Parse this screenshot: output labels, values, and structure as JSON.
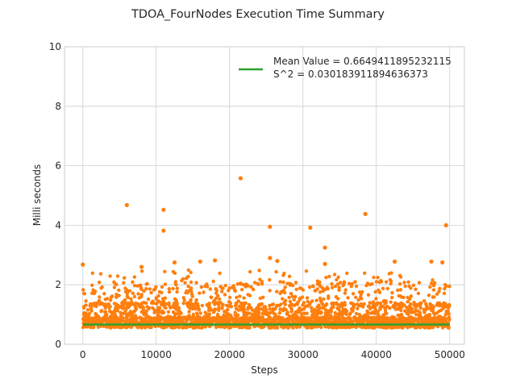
{
  "chart_data": {
    "type": "scatter",
    "title": "TDOA_FourNodes Execution Time Summary",
    "xlabel": "Steps",
    "ylabel": "Milli seconds",
    "xlim": [
      -2500,
      52000
    ],
    "ylim": [
      0,
      10
    ],
    "xticks": [
      0,
      10000,
      20000,
      30000,
      40000,
      50000
    ],
    "yticks": [
      0,
      2,
      4,
      6,
      8,
      10
    ],
    "grid": true,
    "legend_position": "top-right",
    "colors": {
      "points": "#ff7f0e",
      "mean_line": "#2ca02c"
    },
    "mean": {
      "label": "Mean Value = 0.6649411895232115",
      "value": 0.6649411895232115,
      "x_range": [
        0,
        50000
      ]
    },
    "variance_label": "S^2 = 0.030183911894636373",
    "step_count": 50000,
    "outliers": [
      {
        "x": 0,
        "y": 2.68
      },
      {
        "x": 6000,
        "y": 4.68
      },
      {
        "x": 8000,
        "y": 2.6
      },
      {
        "x": 11000,
        "y": 4.52
      },
      {
        "x": 11000,
        "y": 3.82
      },
      {
        "x": 12500,
        "y": 2.75
      },
      {
        "x": 16000,
        "y": 2.78
      },
      {
        "x": 18000,
        "y": 2.82
      },
      {
        "x": 21500,
        "y": 5.58
      },
      {
        "x": 25500,
        "y": 3.95
      },
      {
        "x": 25500,
        "y": 2.9
      },
      {
        "x": 26500,
        "y": 2.8
      },
      {
        "x": 31000,
        "y": 3.92
      },
      {
        "x": 33000,
        "y": 3.25
      },
      {
        "x": 33000,
        "y": 2.7
      },
      {
        "x": 38500,
        "y": 4.38
      },
      {
        "x": 42500,
        "y": 2.78
      },
      {
        "x": 47500,
        "y": 2.78
      },
      {
        "x": 49000,
        "y": 2.75
      },
      {
        "x": 49500,
        "y": 4.0
      }
    ]
  }
}
